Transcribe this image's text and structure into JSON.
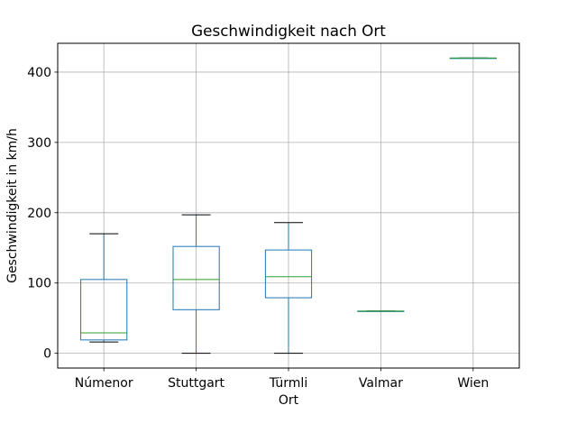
{
  "chart_data": {
    "type": "boxplot",
    "title": "Geschwindigkeit nach Ort",
    "xlabel": "Ort",
    "ylabel": "Geschwindigkeit in km/h",
    "categories": [
      "Númenor",
      "Stuttgart",
      "Türmli",
      "Valmar",
      "Wien"
    ],
    "boxes": [
      {
        "category": "Númenor",
        "whisker_low": 16,
        "q1": 19,
        "median": 29,
        "q3": 105,
        "whisker_high": 170
      },
      {
        "category": "Stuttgart",
        "whisker_low": 0,
        "q1": 62,
        "median": 105,
        "q3": 152,
        "whisker_high": 197
      },
      {
        "category": "Türmli",
        "whisker_low": 0,
        "q1": 79,
        "median": 109,
        "q3": 147,
        "whisker_high": 186
      },
      {
        "category": "Valmar",
        "whisker_low": 60,
        "q1": 60,
        "median": 60,
        "q3": 60,
        "whisker_high": 60
      },
      {
        "category": "Wien",
        "whisker_low": 420,
        "q1": 420,
        "median": 420,
        "q3": 420,
        "whisker_high": 420
      }
    ],
    "yticks": [
      0,
      100,
      200,
      300,
      400
    ],
    "ylim": [
      -21,
      441
    ],
    "grid": true,
    "colors": {
      "box": "#1f77b4",
      "median": "#2ca02c",
      "whisker": "#1f77b4",
      "cap": "#000000",
      "grid": "#b0b0b0"
    }
  }
}
